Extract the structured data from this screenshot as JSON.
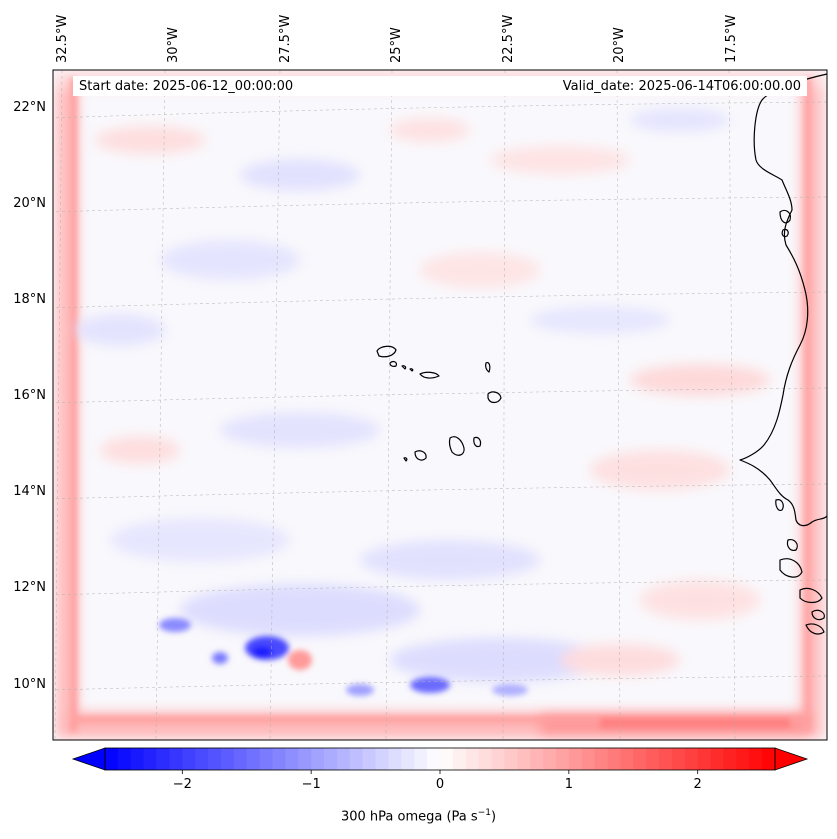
{
  "map": {
    "start_date": "Start date: 2025-06-12_00:00:00",
    "valid_date": "Valid_date: 2025-06-14T06:00:00.00",
    "lon_labels": [
      "32.5°W",
      "30°W",
      "27.5°W",
      "25°W",
      "22.5°W",
      "20°W",
      "17.5°W"
    ],
    "lat_labels": [
      "22°N",
      "20°N",
      "18°N",
      "16°N",
      "14°N",
      "12°N",
      "10°N"
    ],
    "field": "300 hPa omega",
    "units": "Pa s",
    "units_exp": "−1"
  },
  "colorbar": {
    "ticks": [
      "−2",
      "−1",
      "0",
      "1",
      "2"
    ],
    "tick_values": [
      -2,
      -1,
      0,
      1,
      2
    ],
    "range": [
      -2.6,
      2.6
    ],
    "colors": {
      "min": "#0000ff",
      "mid": "#ffffff",
      "max": "#ff0000"
    },
    "extend": "both"
  }
}
